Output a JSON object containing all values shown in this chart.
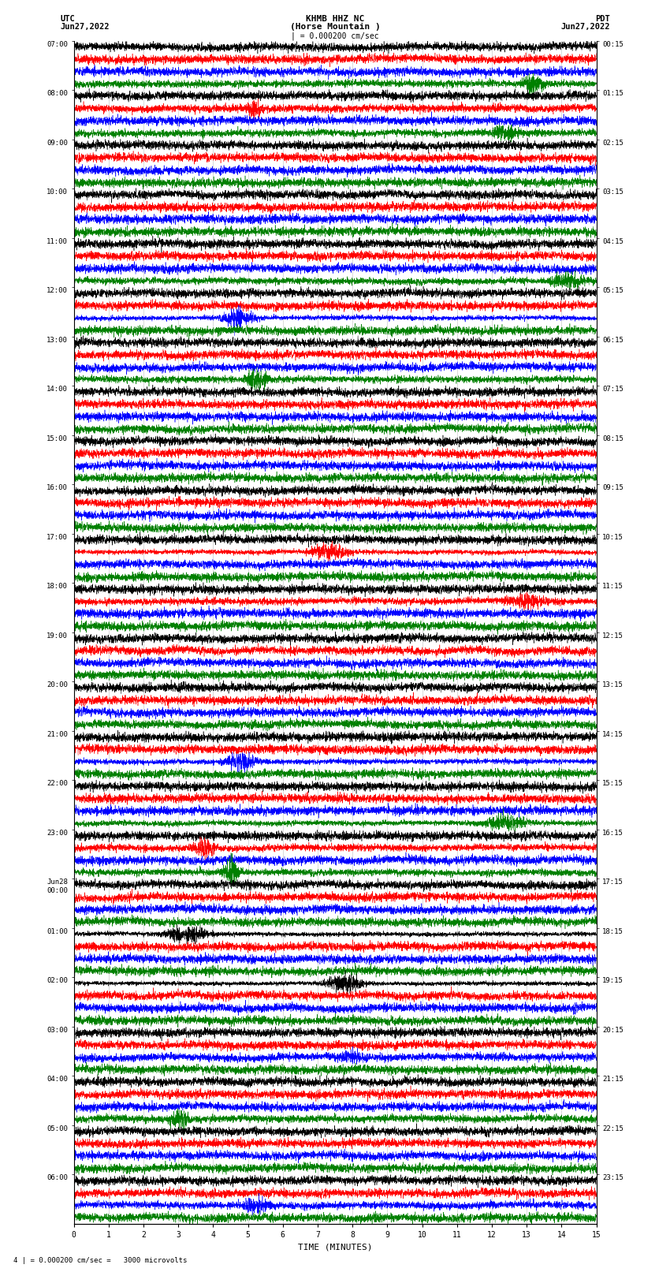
{
  "title_line1": "KHMB HHZ NC",
  "title_line2": "(Horse Mountain )",
  "title_line3": "| = 0.000200 cm/sec",
  "left_header_line1": "UTC",
  "left_header_line2": "Jun27,2022",
  "right_header_line1": "PDT",
  "right_header_line2": "Jun27,2022",
  "xlabel": "TIME (MINUTES)",
  "footer": "4 | = 0.000200 cm/sec =   3000 microvolts",
  "row_colors": [
    "black",
    "red",
    "blue",
    "green"
  ],
  "bg_color": "white",
  "xmin": 0,
  "xmax": 15,
  "seed": 42,
  "utc_times": [
    "07:00",
    "08:00",
    "09:00",
    "10:00",
    "11:00",
    "12:00",
    "13:00",
    "14:00",
    "15:00",
    "16:00",
    "17:00",
    "18:00",
    "19:00",
    "20:00",
    "21:00",
    "22:00",
    "23:00",
    "Jun28\n00:00",
    "01:00",
    "02:00",
    "03:00",
    "04:00",
    "05:00",
    "06:00"
  ],
  "pdt_times": [
    "00:15",
    "01:15",
    "02:15",
    "03:15",
    "04:15",
    "05:15",
    "06:15",
    "07:15",
    "08:15",
    "09:15",
    "10:15",
    "11:15",
    "12:15",
    "13:15",
    "14:15",
    "15:15",
    "16:15",
    "17:15",
    "18:15",
    "19:15",
    "20:15",
    "21:15",
    "22:15",
    "23:15"
  ]
}
